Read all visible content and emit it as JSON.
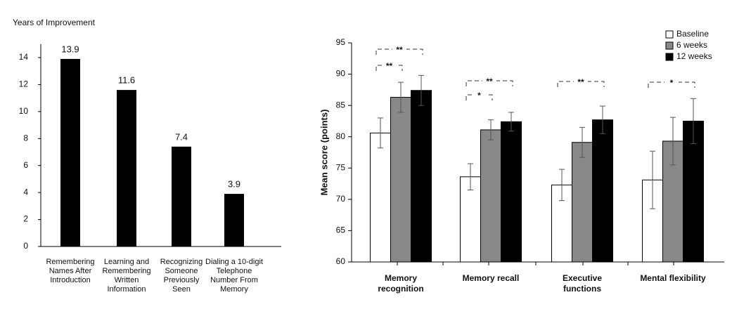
{
  "chart_data": [
    {
      "type": "bar",
      "title": "Years of Improvement",
      "categories": [
        [
          "Remembering",
          "Names After",
          "Introduction"
        ],
        [
          "Learning and",
          "Remembering",
          "Written",
          "Information"
        ],
        [
          "Recognizing",
          "Someone",
          "Previously",
          "Seen"
        ],
        [
          "Dialing a 10-digit",
          "Telephone",
          "Number From",
          "Memory"
        ]
      ],
      "values": [
        13.9,
        11.6,
        7.4,
        3.9
      ],
      "color": "#000000",
      "ylim": [
        0,
        15
      ],
      "yticks": [
        0,
        2,
        4,
        6,
        8,
        10,
        12,
        14
      ]
    },
    {
      "type": "grouped-bar",
      "ylabel": "Mean score (points)",
      "categories": [
        [
          "Memory",
          "recognition"
        ],
        [
          "Memory recall"
        ],
        [
          "Executive",
          "functions"
        ],
        [
          "Mental flexibility"
        ]
      ],
      "series": [
        {
          "name": "Baseline",
          "color": "#ffffff",
          "values": [
            80.6,
            73.6,
            72.3,
            73.1
          ],
          "errors": [
            2.4,
            2.1,
            2.5,
            4.6
          ]
        },
        {
          "name": "6 weeks",
          "color": "#888888",
          "values": [
            86.3,
            81.1,
            79.1,
            79.3
          ],
          "errors": [
            2.4,
            1.6,
            2.4,
            3.8
          ]
        },
        {
          "name": "12 weeks",
          "color": "#000000",
          "values": [
            87.4,
            82.4,
            82.7,
            82.5
          ],
          "errors": [
            2.4,
            1.5,
            2.2,
            3.6
          ]
        }
      ],
      "ylim": [
        60,
        95
      ],
      "yticks": [
        60,
        65,
        70,
        75,
        80,
        85,
        90,
        95
      ],
      "annotations": [
        "**",
        "**",
        "*",
        "**",
        "**",
        "*"
      ]
    }
  ]
}
